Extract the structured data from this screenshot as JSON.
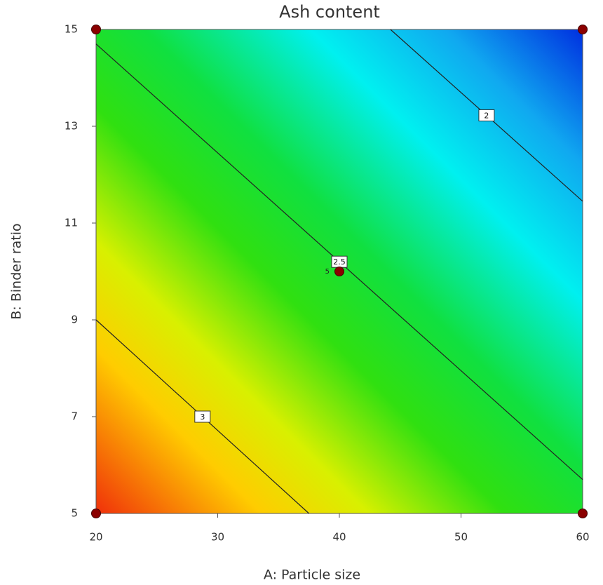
{
  "chart_data": {
    "type": "contour",
    "title": "Ash content",
    "xlabel": "A: Particle size",
    "ylabel": "B: Binder ratio",
    "xlim": [
      20,
      60
    ],
    "ylim": [
      5,
      15
    ],
    "xticks": [
      20,
      30,
      40,
      50,
      60
    ],
    "yticks": [
      5,
      7,
      9,
      11,
      13,
      15
    ],
    "contours": [
      {
        "level": 3,
        "x": [
          20,
          37.5
        ],
        "y": [
          9,
          5
        ]
      },
      {
        "level": 2.5,
        "x": [
          20,
          60
        ],
        "y": [
          14.7,
          5.7
        ]
      },
      {
        "level": 2,
        "x": [
          44.2,
          60
        ],
        "y": [
          15,
          11.45
        ]
      }
    ],
    "points": {
      "color": "#8b0000",
      "x": [
        20,
        20,
        60,
        60,
        40
      ],
      "y": [
        5,
        15,
        5,
        15,
        10
      ]
    },
    "annotations": [
      {
        "text": "5",
        "x": 40,
        "y": 10
      }
    ]
  }
}
